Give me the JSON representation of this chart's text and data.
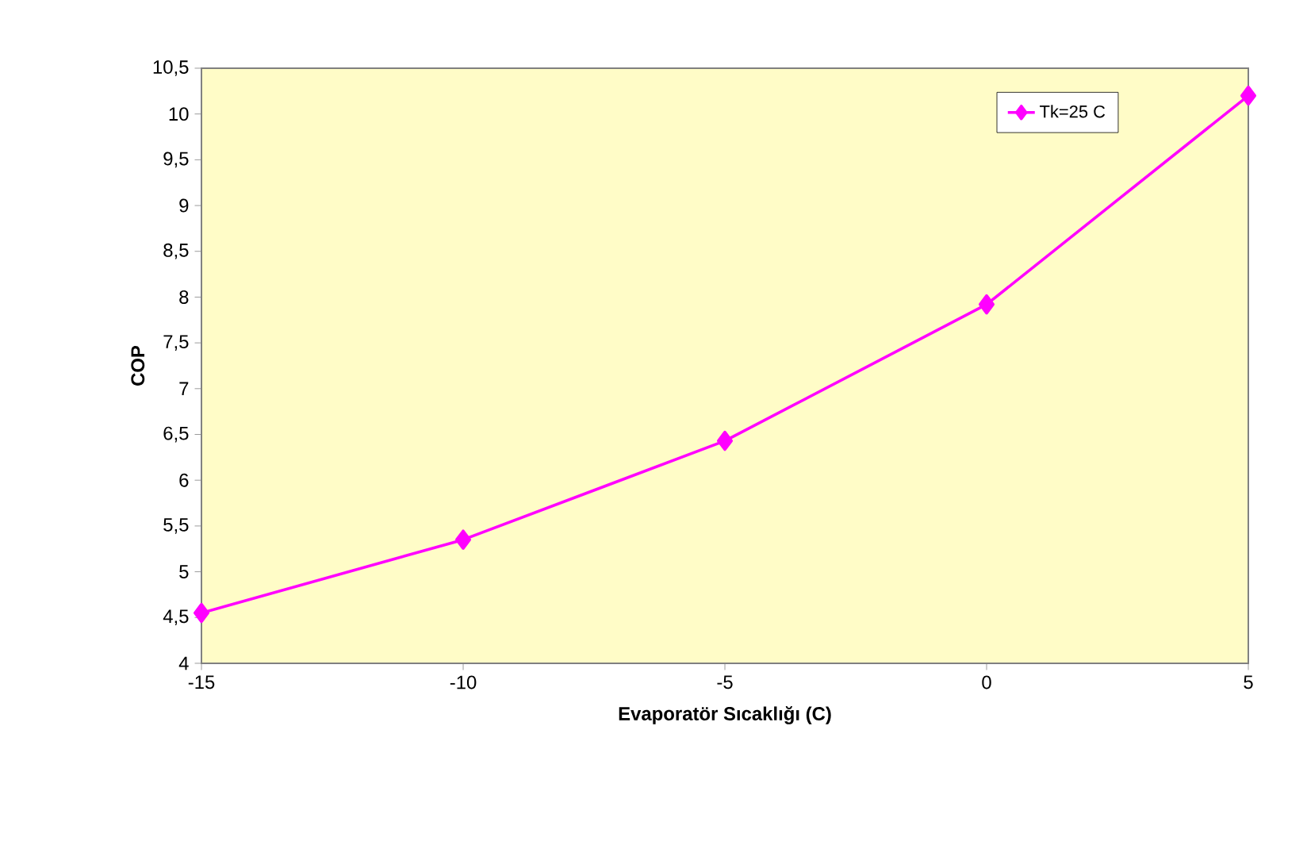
{
  "chart_data": {
    "type": "line",
    "xlabel": "Evaporatör Sıcaklığı (C)",
    "ylabel": "COP",
    "x": [
      -15,
      -10,
      -5,
      0,
      5
    ],
    "series": [
      {
        "name": "Tk=25 C",
        "color": "#ff00ff",
        "values": [
          4.55,
          5.35,
          6.43,
          7.92,
          10.2
        ]
      }
    ],
    "xlim": [
      -15,
      5
    ],
    "xticks": [
      -15,
      -10,
      -5,
      0,
      5
    ],
    "ylim": [
      4,
      10.5
    ],
    "yticks": [
      4,
      {
        "value": 4.5,
        "label": "4,5"
      },
      5,
      {
        "value": 5.5,
        "label": "5,5"
      },
      6,
      {
        "value": 6.5,
        "label": "6,5"
      },
      7,
      {
        "value": 7.5,
        "label": "7,5"
      },
      8,
      {
        "value": 8.5,
        "label": "8,5"
      },
      9,
      {
        "value": 9.5,
        "label": "9,5"
      },
      10,
      {
        "value": 10.5,
        "label": "10,5"
      }
    ],
    "grid": false,
    "legend": "top right",
    "marker": "diamond",
    "line_style": "solid"
  }
}
